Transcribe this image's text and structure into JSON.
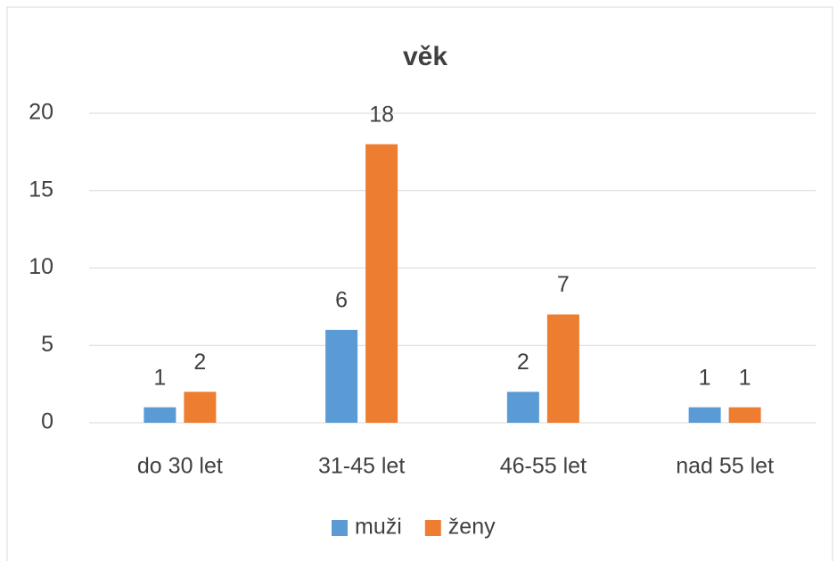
{
  "chart_data": {
    "type": "bar",
    "title": "věk",
    "categories": [
      "do 30 let",
      "31-45 let",
      "46-55 let",
      "nad 55 let"
    ],
    "series": [
      {
        "name": "muži",
        "color": "#5b9bd5",
        "values": [
          1,
          6,
          2,
          1
        ]
      },
      {
        "name": "ženy",
        "color": "#ed7d31",
        "values": [
          2,
          18,
          7,
          1
        ]
      }
    ],
    "ylim": [
      0,
      20
    ],
    "yticks": [
      0,
      5,
      10,
      15,
      20
    ],
    "grid": true,
    "legend": "bottom"
  }
}
